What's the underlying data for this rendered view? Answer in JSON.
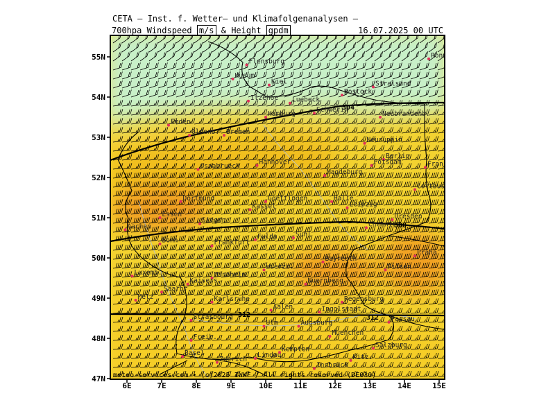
{
  "header": {
    "line1": "CETA — Inst. f. Wetter— und Klimafolgenanalysen —",
    "product_prefix": "700hpa Windspeed",
    "unit1": "m/s",
    "product_mid": "& Height",
    "unit2": "gpdm",
    "datetime": "16.07.2025 00 UTC"
  },
  "footer": {
    "credit": "meteo-services.com • (c)2025 IWKF / All rights reserved (DE030)"
  },
  "axes": {
    "lat_labels": [
      "55N",
      "54N",
      "53N",
      "52N",
      "51N",
      "50N",
      "49N",
      "48N",
      "47N"
    ],
    "lon_labels": [
      "6E",
      "7E",
      "8E",
      "9E",
      "10E",
      "11E",
      "12E",
      "13E",
      "14E",
      "15E"
    ]
  },
  "contours": {
    "labels": [
      "304",
      "308",
      "312",
      "312"
    ]
  },
  "cities": [
    {
      "name": "Ronne",
      "lon": 14.7,
      "lat": 54.95
    },
    {
      "name": "Flensburg",
      "lon": 9.45,
      "lat": 54.8
    },
    {
      "name": "Husum",
      "lon": 9.05,
      "lat": 54.45
    },
    {
      "name": "Kiel",
      "lon": 10.1,
      "lat": 54.3
    },
    {
      "name": "Rostock",
      "lon": 12.2,
      "lat": 54.05
    },
    {
      "name": "Stralsund",
      "lon": 13.1,
      "lat": 54.25
    },
    {
      "name": "Itzehoe",
      "lon": 9.5,
      "lat": 53.9
    },
    {
      "name": "Luebeck",
      "lon": 10.7,
      "lat": 53.85
    },
    {
      "name": "Schwerin",
      "lon": 11.4,
      "lat": 53.6
    },
    {
      "name": "Hamburg",
      "lon": 10.0,
      "lat": 53.5
    },
    {
      "name": "Neubrandenb.",
      "lon": 13.3,
      "lat": 53.5
    },
    {
      "name": "Emden",
      "lon": 7.2,
      "lat": 53.3
    },
    {
      "name": "Oldenb.",
      "lon": 7.8,
      "lat": 53.05
    },
    {
      "name": "Bremen",
      "lon": 8.8,
      "lat": 53.05
    },
    {
      "name": "Neuruppin",
      "lon": 12.85,
      "lat": 52.85
    },
    {
      "name": "Berlin",
      "lon": 13.4,
      "lat": 52.45
    },
    {
      "name": "Potsdam",
      "lon": 13.05,
      "lat": 52.3
    },
    {
      "name": "Frankfurt/O.",
      "lon": 14.6,
      "lat": 52.25
    },
    {
      "name": "Osnabrueck",
      "lon": 8.05,
      "lat": 52.2
    },
    {
      "name": "Hannover",
      "lon": 9.75,
      "lat": 52.3
    },
    {
      "name": "Magdeburg",
      "lon": 11.7,
      "lat": 52.05
    },
    {
      "name": "Cottbus",
      "lon": 14.3,
      "lat": 51.7
    },
    {
      "name": "Dortmund",
      "lon": 7.55,
      "lat": 51.4
    },
    {
      "name": "Goettingen",
      "lon": 10.0,
      "lat": 51.4
    },
    {
      "name": "Halle",
      "lon": 11.9,
      "lat": 51.4
    },
    {
      "name": "Kassel",
      "lon": 9.55,
      "lat": 51.2
    },
    {
      "name": "Leipzig",
      "lon": 12.35,
      "lat": 51.25
    },
    {
      "name": "Dresden",
      "lon": 13.65,
      "lat": 50.95
    },
    {
      "name": "Essen",
      "lon": 6.95,
      "lat": 51.0
    },
    {
      "name": "Siegen",
      "lon": 8.1,
      "lat": 50.85
    },
    {
      "name": "Chemnitz",
      "lon": 12.9,
      "lat": 50.75
    },
    {
      "name": "Aachen",
      "lon": 5.95,
      "lat": 50.7
    },
    {
      "name": "Fulda",
      "lon": 9.7,
      "lat": 50.45
    },
    {
      "name": "Suhl",
      "lon": 10.8,
      "lat": 50.5
    },
    {
      "name": "Bonn",
      "lon": 6.95,
      "lat": 50.35
    },
    {
      "name": "Frankfurt",
      "lon": 8.45,
      "lat": 50.3
    },
    {
      "name": "Praha",
      "lon": 14.3,
      "lat": 50.05
    },
    {
      "name": "Bayreuth",
      "lon": 11.65,
      "lat": 49.9
    },
    {
      "name": "Wuerzb.",
      "lon": 9.95,
      "lat": 49.7
    },
    {
      "name": "Pilsen",
      "lon": 13.45,
      "lat": 49.7
    },
    {
      "name": "Luxemb.",
      "lon": 6.15,
      "lat": 49.55
    },
    {
      "name": "Mannheim",
      "lon": 8.45,
      "lat": 49.5
    },
    {
      "name": "Nuernberg",
      "lon": 11.15,
      "lat": 49.35
    },
    {
      "name": "Kaisers.",
      "lon": 7.75,
      "lat": 49.35
    },
    {
      "name": "Saarbr.",
      "lon": 7.0,
      "lat": 49.15
    },
    {
      "name": "Metz",
      "lon": 6.25,
      "lat": 48.95
    },
    {
      "name": "Karlsruhe",
      "lon": 8.45,
      "lat": 48.9
    },
    {
      "name": "Regensburg",
      "lon": 12.2,
      "lat": 48.9
    },
    {
      "name": "Aalen",
      "lon": 10.15,
      "lat": 48.7
    },
    {
      "name": "Ingolstadt",
      "lon": 11.55,
      "lat": 48.65
    },
    {
      "name": "Strasbourg",
      "lon": 7.85,
      "lat": 48.45
    },
    {
      "name": "Ulm",
      "lon": 9.95,
      "lat": 48.3
    },
    {
      "name": "Augsburg",
      "lon": 10.95,
      "lat": 48.3
    },
    {
      "name": "Passau",
      "lon": 13.55,
      "lat": 48.4
    },
    {
      "name": "Muenchen",
      "lon": 11.85,
      "lat": 48.05
    },
    {
      "name": "Freib.",
      "lon": 7.85,
      "lat": 47.95
    },
    {
      "name": "Salzburg",
      "lon": 13.1,
      "lat": 47.75
    },
    {
      "name": "Basel",
      "lon": 7.6,
      "lat": 47.55
    },
    {
      "name": "Kempten",
      "lon": 10.4,
      "lat": 47.65
    },
    {
      "name": "Zuerich",
      "lon": 8.6,
      "lat": 47.4
    },
    {
      "name": "Lindau",
      "lon": 9.7,
      "lat": 47.5
    },
    {
      "name": "Insbruck",
      "lon": 11.4,
      "lat": 47.25
    },
    {
      "name": "Kitz.",
      "lon": 12.45,
      "lat": 47.45
    }
  ],
  "colors": {
    "wind_lt15": "#c8f0c8",
    "wind_15_20": "#f3d230",
    "wind_20_25": "#f0ba1c",
    "wind_gt25": "#f0a020",
    "barb": "#000000",
    "city_dot": "#e0305a"
  }
}
